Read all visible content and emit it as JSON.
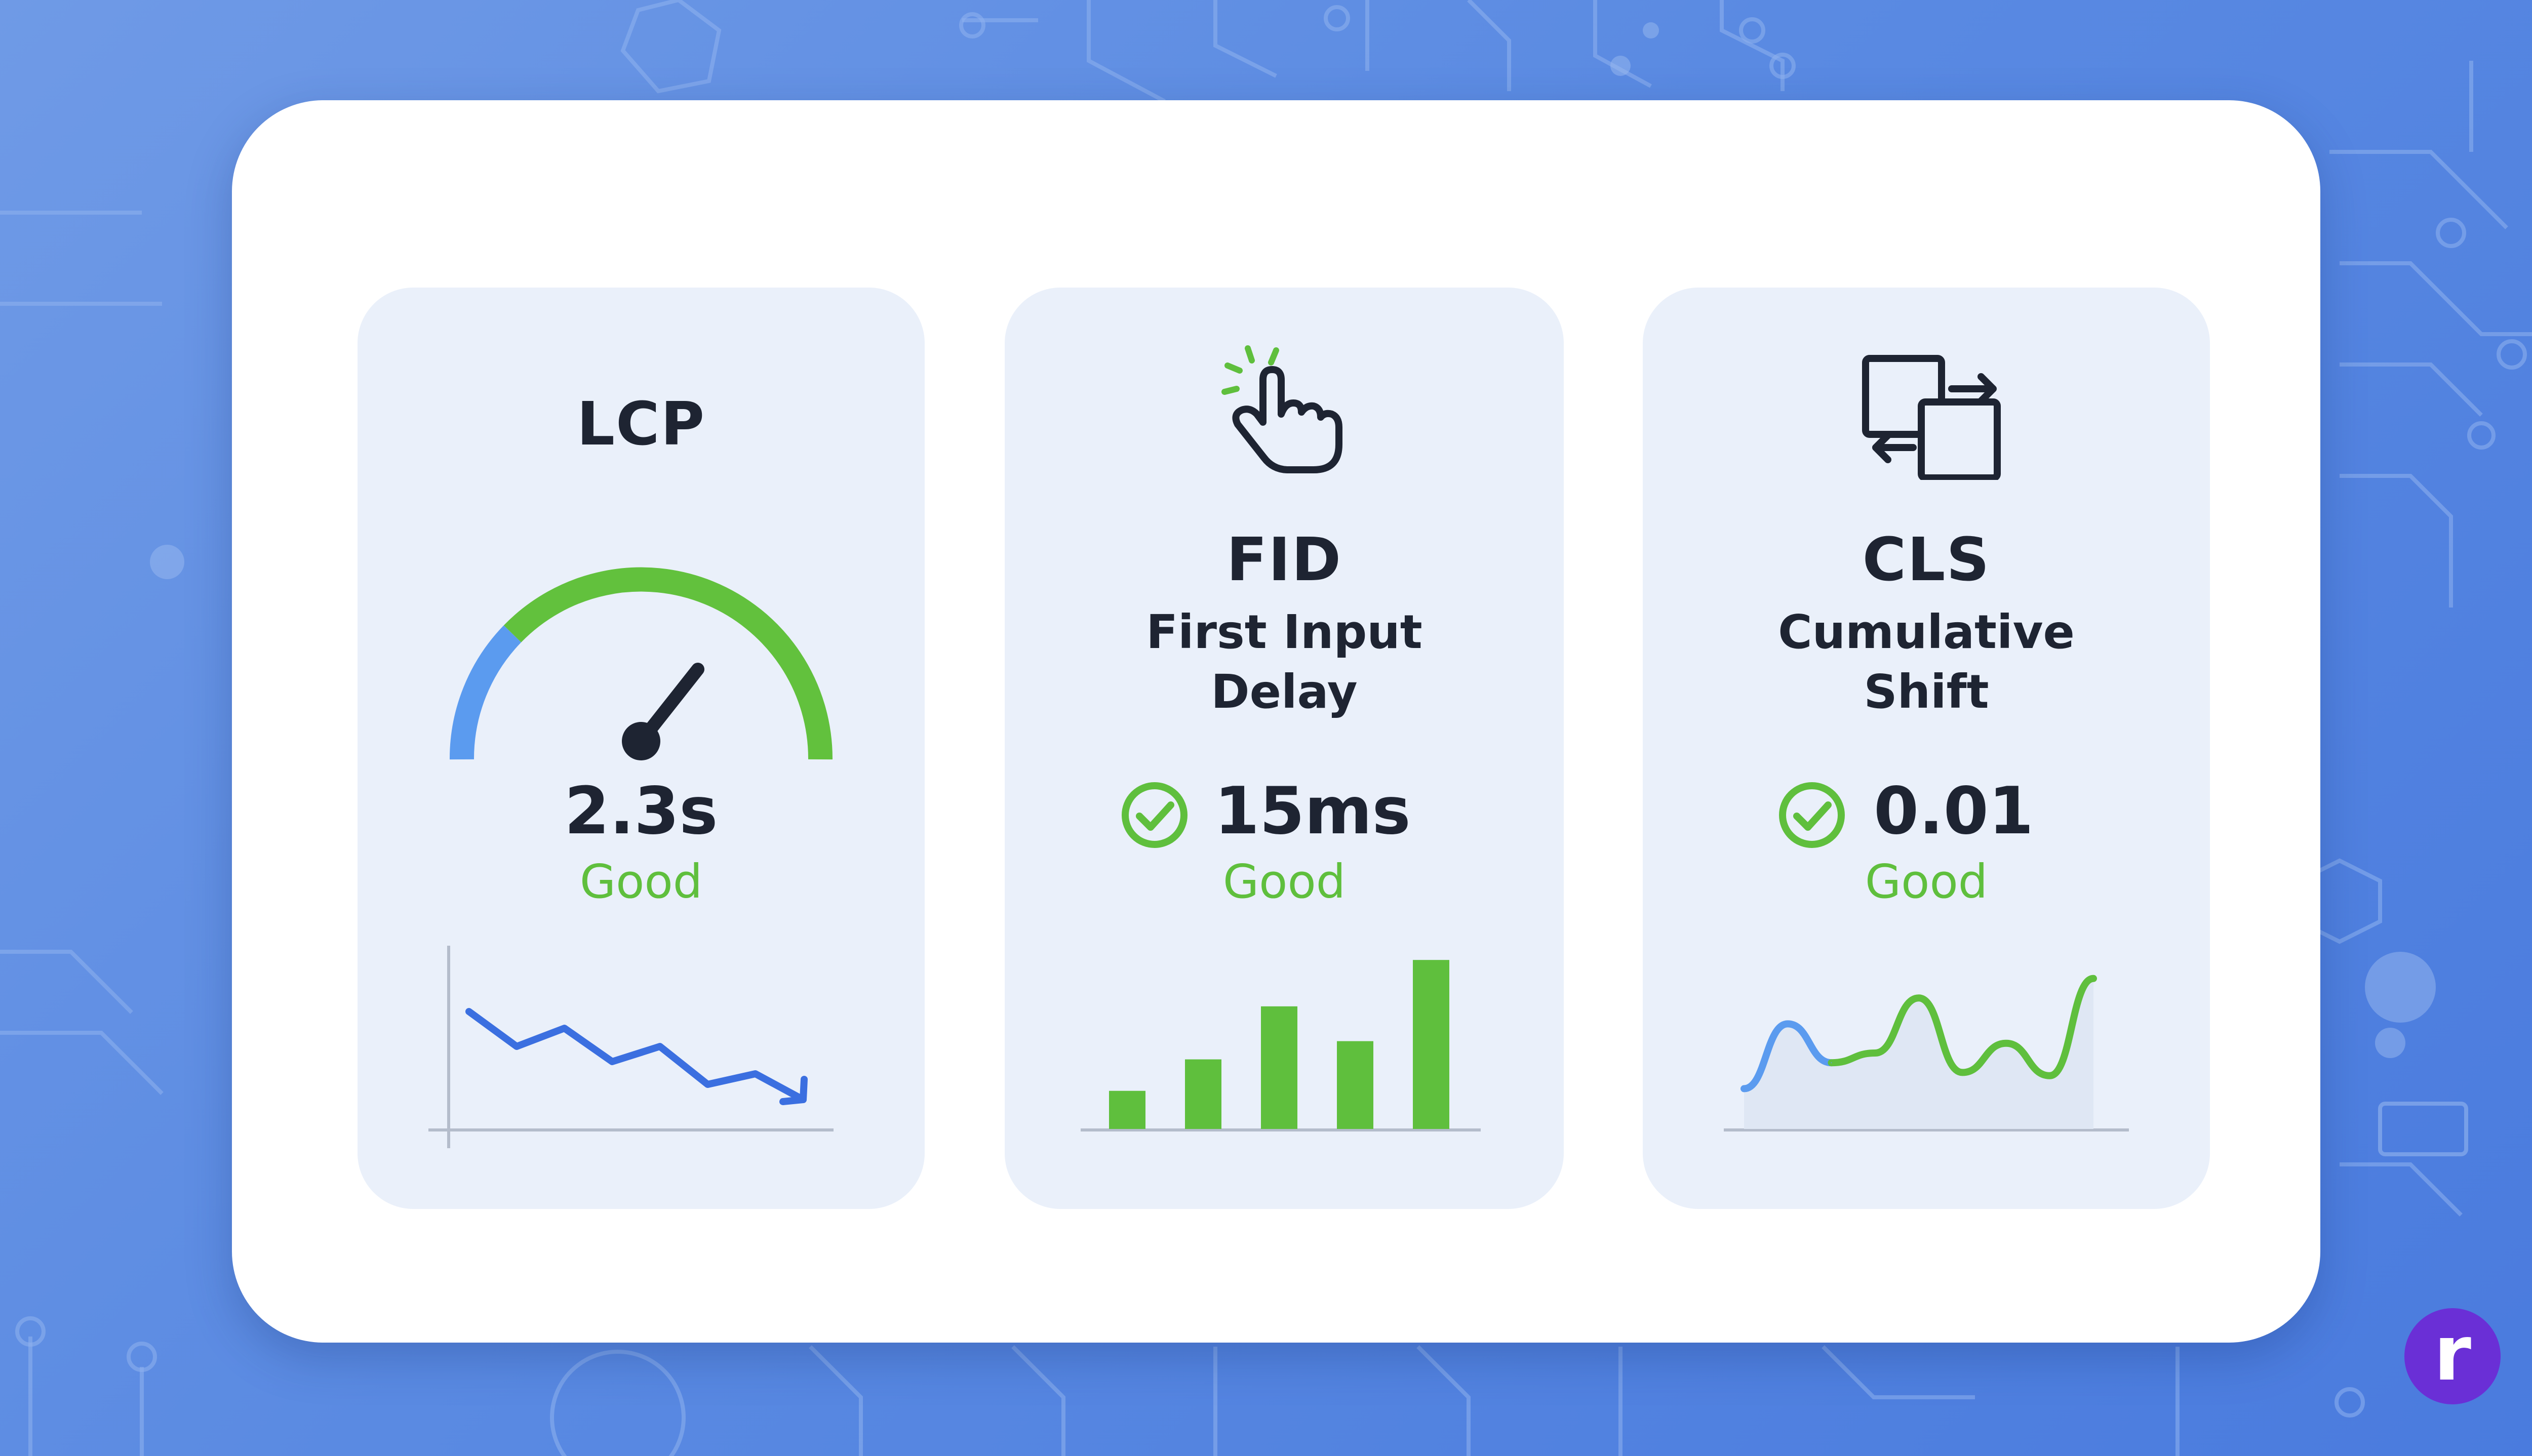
{
  "colors": {
    "background": "#5a8ae2",
    "panel": "#ffffff",
    "card": "#eaf0fa",
    "text": "#1e2432",
    "good": "#5fbf3d",
    "blue_accent": "#5b9bef",
    "chart_line": "#3b6fe0",
    "axis": "#b4bccb",
    "brand": "#6a2fd6"
  },
  "metrics": {
    "lcp": {
      "title": "LCP",
      "value": "2.3s",
      "status": "Good",
      "visual": "gauge",
      "trend": "downward-line"
    },
    "fid": {
      "icon": "tap-hand-icon",
      "title": "FID",
      "subtitle_line1": "First Input",
      "subtitle_line2": "Delay",
      "value": "15ms",
      "status": "Good",
      "visual": "bar-chart"
    },
    "cls": {
      "icon": "swap-layout-icon",
      "title": "CLS",
      "subtitle_line1": "Cumulative",
      "subtitle_line2": "Shift",
      "value": "0.01",
      "status": "Good",
      "visual": "wave-line"
    }
  },
  "brand": {
    "badge_letter": "r"
  },
  "chart_data": [
    {
      "type": "line",
      "title": "",
      "x": [
        1,
        2,
        3,
        4,
        5,
        6,
        7,
        8
      ],
      "values": [
        7,
        4.7,
        5.9,
        3.7,
        4.7,
        2.2,
        2.9,
        1.2
      ],
      "ylim": [
        0,
        10
      ]
    },
    {
      "type": "bar",
      "title": "",
      "categories": [
        "1",
        "2",
        "3",
        "4",
        "5"
      ],
      "values": [
        2.3,
        4.2,
        7.4,
        5.3,
        10.2
      ],
      "ylim": [
        0,
        11
      ]
    },
    {
      "type": "line",
      "title": "",
      "x": [
        1,
        2,
        3,
        4,
        5,
        6,
        7,
        8,
        9
      ],
      "values": [
        1.8,
        5.8,
        3.4,
        4.0,
        7.4,
        2.8,
        4.6,
        2.6,
        8.6
      ],
      "ylim": [
        0,
        10
      ]
    }
  ]
}
